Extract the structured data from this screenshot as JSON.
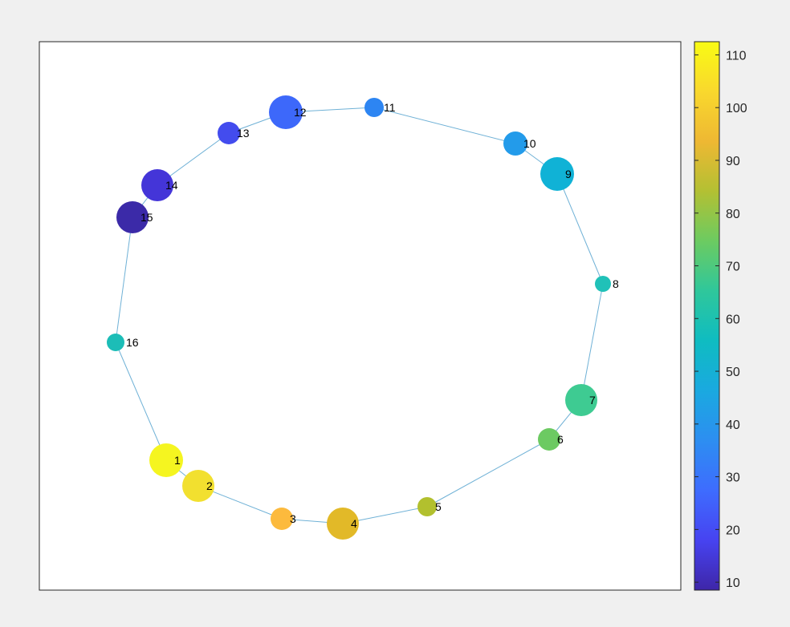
{
  "graph": {
    "edge_color": "#6fb1d6",
    "nodes": [
      {
        "id": "1",
        "label": "1",
        "value": 112,
        "color": "#f5f520"
      },
      {
        "id": "2",
        "label": "2",
        "value": 108,
        "color": "#f2e02f"
      },
      {
        "id": "3",
        "label": "3",
        "value": 98,
        "color": "#fcba3d"
      },
      {
        "id": "4",
        "label": "4",
        "value": 92,
        "color": "#e2b928"
      },
      {
        "id": "5",
        "label": "5",
        "value": 82,
        "color": "#b2c02e"
      },
      {
        "id": "6",
        "label": "6",
        "value": 76,
        "color": "#6cca62"
      },
      {
        "id": "7",
        "label": "7",
        "value": 68,
        "color": "#3ecb92"
      },
      {
        "id": "8",
        "label": "8",
        "value": 60,
        "color": "#20c1b8"
      },
      {
        "id": "9",
        "label": "9",
        "value": 52,
        "color": "#10b2d6"
      },
      {
        "id": "10",
        "label": "10",
        "value": 45,
        "color": "#239bea"
      },
      {
        "id": "11",
        "label": "11",
        "value": 38,
        "color": "#2d85f2"
      },
      {
        "id": "12",
        "label": "12",
        "value": 30,
        "color": "#3d68fa"
      },
      {
        "id": "13",
        "label": "13",
        "value": 24,
        "color": "#434cee"
      },
      {
        "id": "14",
        "label": "14",
        "value": 18,
        "color": "#4435d8"
      },
      {
        "id": "15",
        "label": "15",
        "value": 10,
        "color": "#3b2aa8"
      },
      {
        "id": "16",
        "label": "16",
        "value": 62,
        "color": "#1cbdb7"
      }
    ],
    "edges": [
      [
        "1",
        "2"
      ],
      [
        "2",
        "3"
      ],
      [
        "3",
        "4"
      ],
      [
        "4",
        "5"
      ],
      [
        "5",
        "6"
      ],
      [
        "6",
        "7"
      ],
      [
        "7",
        "8"
      ],
      [
        "8",
        "9"
      ],
      [
        "9",
        "10"
      ],
      [
        "10",
        "11"
      ],
      [
        "11",
        "12"
      ],
      [
        "12",
        "13"
      ],
      [
        "13",
        "14"
      ],
      [
        "14",
        "15"
      ],
      [
        "15",
        "16"
      ],
      [
        "16",
        "1"
      ]
    ]
  },
  "colorbar": {
    "min": 8.5,
    "max": 112.5,
    "ticks": [
      10,
      20,
      30,
      40,
      50,
      60,
      70,
      80,
      90,
      100,
      110
    ],
    "tick_labels": [
      "10",
      "20",
      "30",
      "40",
      "50",
      "60",
      "70",
      "80",
      "90",
      "100",
      "110"
    ],
    "colormap": [
      "#3e26a8",
      "#4743f1",
      "#3e6cfe",
      "#2d8ef1",
      "#1aa9e0",
      "#0fbcc1",
      "#2fc79b",
      "#6ccb61",
      "#b3c033",
      "#eeb833",
      "#f9d82d",
      "#f9fb14"
    ]
  }
}
